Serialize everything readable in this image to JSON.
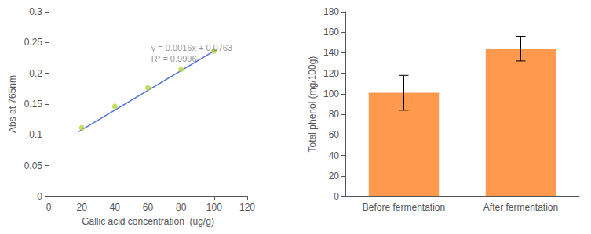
{
  "chart_data": [
    {
      "type": "scatter",
      "xlabel": "Gallic acid concentration  (ug/g)",
      "ylabel": "Abs at 765nm",
      "series": [
        {
          "type": "line",
          "x": [
            18,
            102
          ],
          "values": [
            0.1051,
            0.2395
          ]
        },
        {
          "type": "scatter",
          "x": [
            20,
            40,
            60,
            80,
            100
          ],
          "values": [
            0.1116,
            0.1463,
            0.1763,
            0.2063,
            0.2363
          ]
        }
      ],
      "annotations": [
        {
          "text": "y = 0.0016x + 0.0763\nR² = 0.9996",
          "x": 62,
          "y": 0.215
        }
      ],
      "xlim": [
        0,
        120
      ],
      "ylim": [
        0,
        0.3
      ],
      "xticks": [
        0,
        20,
        40,
        60,
        80,
        100,
        120
      ],
      "yticks": [
        0,
        0.05,
        0.1,
        0.15,
        0.2,
        0.25,
        0.3
      ],
      "grid": false
    },
    {
      "type": "bar",
      "ylabel": "Total phenol (mg/100g)",
      "categories": [
        "Before fermentation",
        "After fermentation"
      ],
      "values": [
        101,
        144
      ],
      "errors": [
        17,
        12
      ],
      "ylim": [
        0,
        180
      ],
      "yticks": [
        0,
        20,
        40,
        60,
        80,
        100,
        120,
        140,
        160,
        180
      ],
      "grid": false
    }
  ]
}
